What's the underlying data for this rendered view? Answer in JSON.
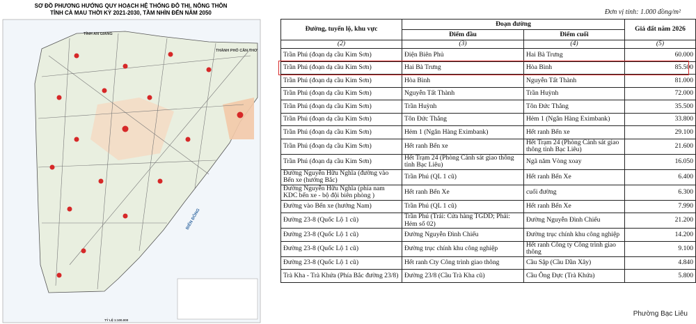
{
  "map": {
    "title_line1": "SƠ ĐỒ PHƯƠNG HƯỚNG QUY HOẠCH HỆ THỐNG ĐÔ THỊ, NÔNG THÔN",
    "title_line2": "TỈNH CÀ MAU THỜI KỲ 2021-2030, TẦM NHÌN ĐẾN NĂM 2050",
    "label_north": "TỈNH AN GIANG",
    "label_east": "THÀNH PHỐ CẦN THƠ",
    "label_sea": "BIỂN ĐÔNG",
    "scale": "TỶ LỆ 1:100.000"
  },
  "table": {
    "unit": "Đơn vị tính: 1.000 đồng/m²",
    "header": {
      "route": "Đường, tuyến lộ, khu vực",
      "segment": "Đoạn đường",
      "start": "Điểm đầu",
      "end": "Điểm cuối",
      "price": "Giá đất năm 2026"
    },
    "column_numbers": [
      "(2)",
      "(3)",
      "(4)",
      "(5)"
    ],
    "rows": [
      [
        "Trần Phú  (đoạn dạ cầu Kim Sơn)",
        "Điện Biên Phủ",
        "Hai Bà Trưng",
        "60.000"
      ],
      [
        "Trần Phú  (đoạn dạ cầu Kim Sơn)",
        "Hai Bà Trưng",
        "Hòa Bình",
        "85.500"
      ],
      [
        "Trần Phú  (đoạn dạ cầu Kim Sơn)",
        "Hòa Bình",
        "Nguyễn Tất Thành",
        "81.000"
      ],
      [
        "Trần Phú  (đoạn dạ cầu Kim Sơn)",
        "Nguyễn Tất Thành",
        "Trần Huỳnh",
        "72.000"
      ],
      [
        "Trần Phú  (đoạn dạ cầu Kim Sơn)",
        "Trần Huỳnh",
        "Tôn Đức Thắng",
        "35.500"
      ],
      [
        "Trần Phú  (đoạn dạ cầu Kim Sơn)",
        "Tôn Đức Thắng",
        "Hẻm 1 (Ngân Hàng Eximbank)",
        "33.800"
      ],
      [
        "Trần Phú  (đoạn dạ cầu Kim Sơn)",
        "Hẻm 1 (Ngân Hàng Eximbank)",
        "Hết ranh Bến xe",
        "29.100"
      ],
      [
        "Trần Phú  (đoạn dạ cầu Kim Sơn)",
        "Hết ranh Bến xe",
        "Hết Trạm 24 (Phòng Cảnh sát giao thông tỉnh Bạc Liêu)",
        "21.600"
      ],
      [
        "Trần Phú  (đoạn dạ cầu Kim Sơn)",
        "Hết Trạm 24 (Phòng Cảnh sát giao thông tỉnh Bạc Liêu)",
        "Ngã năm Vòng xoay",
        "16.050"
      ],
      [
        "Đường Nguyễn Hữu Nghĩa (đường vào Bến xe (hướng Bắc)",
        "Trần Phú (QL 1 cũ)",
        "Hết ranh Bến Xe",
        "6.400"
      ],
      [
        "Đường Nguyễn Hữu Nghĩa (phía nam KDC bến xe - bộ đội biên phòng )",
        "Hết ranh Bến Xe",
        "cuối đường",
        "6.300"
      ],
      [
        "Đường vào Bến xe (hướng Nam)",
        "Trần Phú (QL 1 cũ)",
        "Hết ranh Bến Xe",
        "7.990"
      ],
      [
        "Đường 23-8 (Quốc Lộ 1 cũ)",
        "Trần Phú (Trái: Cửa hàng TGDD; Phải: Hẻm số 02)",
        "Đường Nguyễn Đình Chiểu",
        "21.200"
      ],
      [
        "Đường 23-8 (Quốc Lộ 1 cũ)",
        "Đường Nguyễn Đình Chiểu",
        "Đường trục chính khu công nghiệp",
        "14.200"
      ],
      [
        "Đường 23-8 (Quốc Lộ 1 cũ)",
        "Đường trục chính khu công nghiệp",
        "Hết ranh Công ty Công trình giao thông",
        "9.100"
      ],
      [
        "Đường 23-8 (Quốc Lộ 1 cũ)",
        "Hết ranh Cty Công trình giao thông",
        "Cầu Sập (Cầu Dần Xây)",
        "4.840"
      ],
      [
        "Trà Kha - Trà Khứa (Phía Bắc đường 23/8)",
        "Đường 23/8 (Cầu Trà Kha cũ)",
        "Cầu Ông Đực (Trà Khứa)",
        "5.800"
      ]
    ],
    "footer": "Phường Bạc Liêu"
  }
}
